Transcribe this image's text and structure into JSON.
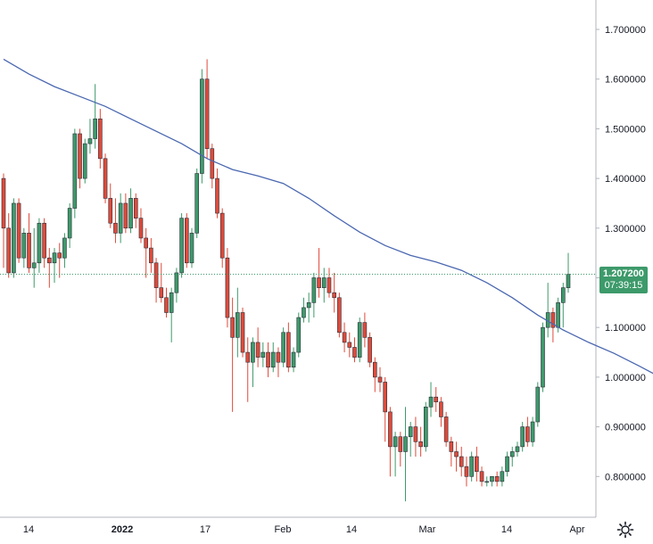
{
  "chart_data": {
    "type": "candlestick",
    "y_axis": {
      "ticks": [
        "1.700000",
        "1.600000",
        "1.500000",
        "1.400000",
        "1.300000",
        "1.200000",
        "1.100000",
        "1.000000",
        "0.900000",
        "0.800000"
      ],
      "tick_values": [
        1.7,
        1.6,
        1.5,
        1.4,
        1.3,
        1.2,
        1.1,
        1.0,
        0.9,
        0.8
      ],
      "range": [
        0.75,
        1.75
      ]
    },
    "x_axis": {
      "ticks": [
        {
          "label": "14",
          "bold": false
        },
        {
          "label": "2022",
          "bold": true
        },
        {
          "label": "17",
          "bold": false
        },
        {
          "label": "Feb",
          "bold": false
        },
        {
          "label": "14",
          "bold": false
        },
        {
          "label": "Mar",
          "bold": false
        },
        {
          "label": "14",
          "bold": false
        },
        {
          "label": "Apr",
          "bold": false
        }
      ]
    },
    "last_price": "1.207200",
    "last_price_value": 1.2072,
    "countdown": "07:39:15",
    "colors": {
      "up": "#3d9a6a",
      "down": "#e04a3a",
      "ma": "#4a67b0",
      "grid": "#d1d4dc"
    },
    "candles": [
      [
        1.4,
        1.41,
        1.22,
        1.3
      ],
      [
        1.3,
        1.33,
        1.2,
        1.21
      ],
      [
        1.21,
        1.36,
        1.2,
        1.35
      ],
      [
        1.35,
        1.36,
        1.23,
        1.24
      ],
      [
        1.24,
        1.3,
        1.22,
        1.29
      ],
      [
        1.29,
        1.33,
        1.21,
        1.22
      ],
      [
        1.22,
        1.3,
        1.18,
        1.23
      ],
      [
        1.23,
        1.32,
        1.21,
        1.31
      ],
      [
        1.31,
        1.32,
        1.22,
        1.24
      ],
      [
        1.24,
        1.26,
        1.18,
        1.23
      ],
      [
        1.23,
        1.26,
        1.19,
        1.25
      ],
      [
        1.25,
        1.27,
        1.2,
        1.24
      ],
      [
        1.24,
        1.29,
        1.22,
        1.28
      ],
      [
        1.28,
        1.35,
        1.26,
        1.34
      ],
      [
        1.34,
        1.5,
        1.32,
        1.49
      ],
      [
        1.49,
        1.5,
        1.38,
        1.4
      ],
      [
        1.4,
        1.48,
        1.39,
        1.47
      ],
      [
        1.47,
        1.52,
        1.45,
        1.48
      ],
      [
        1.48,
        1.59,
        1.46,
        1.52
      ],
      [
        1.52,
        1.54,
        1.42,
        1.44
      ],
      [
        1.44,
        1.45,
        1.35,
        1.36
      ],
      [
        1.36,
        1.39,
        1.3,
        1.31
      ],
      [
        1.31,
        1.36,
        1.27,
        1.29
      ],
      [
        1.29,
        1.37,
        1.27,
        1.35
      ],
      [
        1.35,
        1.37,
        1.29,
        1.3
      ],
      [
        1.3,
        1.38,
        1.29,
        1.36
      ],
      [
        1.36,
        1.37,
        1.3,
        1.32
      ],
      [
        1.32,
        1.34,
        1.27,
        1.28
      ],
      [
        1.28,
        1.3,
        1.2,
        1.26
      ],
      [
        1.26,
        1.28,
        1.21,
        1.23
      ],
      [
        1.23,
        1.24,
        1.15,
        1.18
      ],
      [
        1.18,
        1.23,
        1.15,
        1.16
      ],
      [
        1.16,
        1.18,
        1.12,
        1.13
      ],
      [
        1.13,
        1.18,
        1.07,
        1.17
      ],
      [
        1.17,
        1.22,
        1.15,
        1.21
      ],
      [
        1.21,
        1.33,
        1.2,
        1.32
      ],
      [
        1.32,
        1.33,
        1.22,
        1.23
      ],
      [
        1.23,
        1.3,
        1.22,
        1.29
      ],
      [
        1.29,
        1.42,
        1.28,
        1.41
      ],
      [
        1.41,
        1.62,
        1.39,
        1.6
      ],
      [
        1.6,
        1.64,
        1.44,
        1.46
      ],
      [
        1.46,
        1.47,
        1.38,
        1.4
      ],
      [
        1.4,
        1.42,
        1.32,
        1.33
      ],
      [
        1.33,
        1.34,
        1.22,
        1.24
      ],
      [
        1.24,
        1.26,
        1.1,
        1.12
      ],
      [
        1.12,
        1.16,
        0.93,
        1.08
      ],
      [
        1.08,
        1.18,
        1.04,
        1.13
      ],
      [
        1.13,
        1.14,
        1.04,
        1.05
      ],
      [
        1.05,
        1.08,
        0.95,
        1.03
      ],
      [
        1.03,
        1.08,
        0.98,
        1.07
      ],
      [
        1.07,
        1.1,
        1.02,
        1.04
      ],
      [
        1.04,
        1.07,
        1.02,
        1.05
      ],
      [
        1.05,
        1.07,
        1.0,
        1.02
      ],
      [
        1.02,
        1.07,
        1.01,
        1.05
      ],
      [
        1.05,
        1.06,
        1.0,
        1.03
      ],
      [
        1.03,
        1.1,
        1.02,
        1.09
      ],
      [
        1.09,
        1.11,
        1.01,
        1.02
      ],
      [
        1.02,
        1.06,
        1.01,
        1.05
      ],
      [
        1.05,
        1.13,
        1.04,
        1.12
      ],
      [
        1.12,
        1.16,
        1.11,
        1.14
      ],
      [
        1.14,
        1.17,
        1.11,
        1.15
      ],
      [
        1.15,
        1.21,
        1.12,
        1.2
      ],
      [
        1.2,
        1.26,
        1.16,
        1.18
      ],
      [
        1.18,
        1.22,
        1.15,
        1.2
      ],
      [
        1.2,
        1.22,
        1.16,
        1.17
      ],
      [
        1.17,
        1.21,
        1.13,
        1.16
      ],
      [
        1.16,
        1.17,
        1.08,
        1.09
      ],
      [
        1.09,
        1.11,
        1.05,
        1.07
      ],
      [
        1.07,
        1.09,
        1.04,
        1.06
      ],
      [
        1.06,
        1.08,
        1.03,
        1.04
      ],
      [
        1.04,
        1.12,
        1.03,
        1.11
      ],
      [
        1.11,
        1.13,
        1.06,
        1.08
      ],
      [
        1.08,
        1.09,
        1.02,
        1.03
      ],
      [
        1.03,
        1.04,
        0.97,
        1.0
      ],
      [
        1.0,
        1.02,
        0.97,
        0.99
      ],
      [
        0.99,
        1.0,
        0.87,
        0.93
      ],
      [
        0.93,
        0.94,
        0.8,
        0.86
      ],
      [
        0.86,
        0.89,
        0.8,
        0.88
      ],
      [
        0.88,
        0.89,
        0.82,
        0.85
      ],
      [
        0.85,
        0.94,
        0.75,
        0.88
      ],
      [
        0.88,
        0.91,
        0.84,
        0.9
      ],
      [
        0.9,
        0.92,
        0.84,
        0.87
      ],
      [
        0.87,
        0.9,
        0.84,
        0.86
      ],
      [
        0.86,
        0.95,
        0.85,
        0.94
      ],
      [
        0.94,
        0.99,
        0.92,
        0.96
      ],
      [
        0.96,
        0.98,
        0.93,
        0.95
      ],
      [
        0.95,
        0.96,
        0.9,
        0.92
      ],
      [
        0.92,
        0.93,
        0.86,
        0.87
      ],
      [
        0.87,
        0.88,
        0.82,
        0.85
      ],
      [
        0.85,
        0.87,
        0.81,
        0.84
      ],
      [
        0.84,
        0.86,
        0.8,
        0.82
      ],
      [
        0.82,
        0.84,
        0.78,
        0.8
      ],
      [
        0.8,
        0.85,
        0.79,
        0.84
      ],
      [
        0.84,
        0.86,
        0.79,
        0.81
      ],
      [
        0.81,
        0.82,
        0.78,
        0.79
      ],
      [
        0.79,
        0.8,
        0.78,
        0.79
      ],
      [
        0.79,
        0.8,
        0.78,
        0.8
      ],
      [
        0.8,
        0.81,
        0.78,
        0.79
      ],
      [
        0.79,
        0.82,
        0.78,
        0.81
      ],
      [
        0.81,
        0.85,
        0.8,
        0.84
      ],
      [
        0.84,
        0.86,
        0.82,
        0.85
      ],
      [
        0.85,
        0.87,
        0.84,
        0.86
      ],
      [
        0.86,
        0.91,
        0.85,
        0.9
      ],
      [
        0.9,
        0.92,
        0.86,
        0.87
      ],
      [
        0.87,
        0.92,
        0.86,
        0.91
      ],
      [
        0.91,
        0.99,
        0.9,
        0.98
      ],
      [
        0.98,
        1.11,
        0.97,
        1.1
      ],
      [
        1.1,
        1.19,
        1.08,
        1.13
      ],
      [
        1.13,
        1.14,
        1.07,
        1.1
      ],
      [
        1.1,
        1.16,
        1.09,
        1.15
      ],
      [
        1.15,
        1.19,
        1.1,
        1.18
      ],
      [
        1.18,
        1.25,
        1.17,
        1.207
      ]
    ],
    "moving_average": [
      [
        0,
        1.64
      ],
      [
        5,
        1.61
      ],
      [
        10,
        1.585
      ],
      [
        15,
        1.565
      ],
      [
        20,
        1.545
      ],
      [
        25,
        1.52
      ],
      [
        30,
        1.495
      ],
      [
        35,
        1.47
      ],
      [
        40,
        1.44
      ],
      [
        45,
        1.418
      ],
      [
        50,
        1.405
      ],
      [
        55,
        1.39
      ],
      [
        60,
        1.36
      ],
      [
        65,
        1.325
      ],
      [
        70,
        1.292
      ],
      [
        75,
        1.265
      ],
      [
        80,
        1.245
      ],
      [
        85,
        1.232
      ],
      [
        90,
        1.215
      ],
      [
        95,
        1.19
      ],
      [
        100,
        1.16
      ],
      [
        105,
        1.125
      ],
      [
        110,
        1.095
      ],
      [
        115,
        1.07
      ],
      [
        120,
        1.048
      ],
      [
        125,
        1.022
      ],
      [
        130,
        0.995
      ],
      [
        135,
        0.968
      ],
      [
        138,
        0.955
      ],
      [
        142,
        0.95
      ],
      [
        146,
        0.958
      ],
      [
        150,
        0.975
      ],
      [
        153,
        0.993
      ]
    ]
  }
}
